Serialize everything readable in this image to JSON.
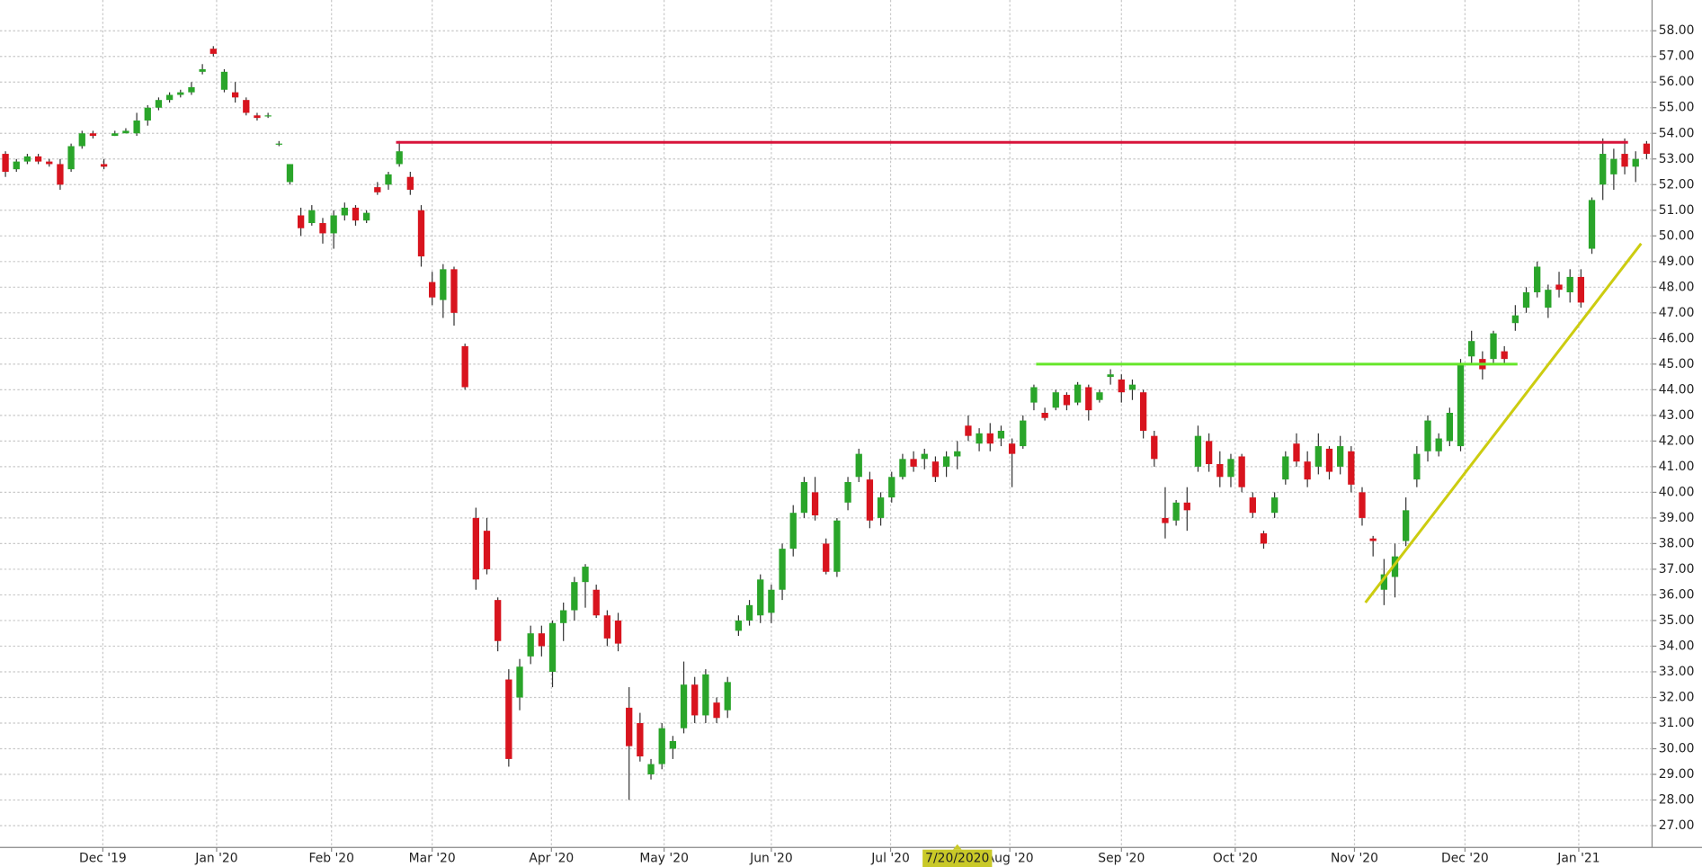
{
  "chart_data": {
    "type": "candlestick",
    "xlim": [
      -0.5,
      150.5
    ],
    "ylim": [
      26.15,
      59.2
    ],
    "grid": true,
    "up_color": "#2aa52a",
    "down_color": "#d8141e",
    "xticks": [
      {
        "value": 8.9,
        "label": "Dec '19"
      },
      {
        "value": 19.3,
        "label": "Jan '20"
      },
      {
        "value": 29.8,
        "label": "Feb '20"
      },
      {
        "value": 39,
        "label": "Mar '20"
      },
      {
        "value": 49.9,
        "label": "Apr '20"
      },
      {
        "value": 60.2,
        "label": "May '20"
      },
      {
        "value": 70,
        "label": "Jun '20"
      },
      {
        "value": 80.9,
        "label": "Jul '20"
      },
      {
        "value": 91.8,
        "label": "Aug '20"
      },
      {
        "value": 102,
        "label": "Sep '20"
      },
      {
        "value": 112.4,
        "label": "Oct '20"
      },
      {
        "value": 123.3,
        "label": "Nov '20"
      },
      {
        "value": 133.4,
        "label": "Dec '20"
      },
      {
        "value": 143.8,
        "label": "Jan '21"
      }
    ],
    "yticks": [
      {
        "value": 27,
        "label": "27.00"
      },
      {
        "value": 28,
        "label": "28.00"
      },
      {
        "value": 29,
        "label": "29.00"
      },
      {
        "value": 30,
        "label": "30.00"
      },
      {
        "value": 31,
        "label": "31.00"
      },
      {
        "value": 32,
        "label": "32.00"
      },
      {
        "value": 33,
        "label": "33.00"
      },
      {
        "value": 34,
        "label": "34.00"
      },
      {
        "value": 35,
        "label": "35.00"
      },
      {
        "value": 36,
        "label": "36.00"
      },
      {
        "value": 37,
        "label": "37.00"
      },
      {
        "value": 38,
        "label": "38.00"
      },
      {
        "value": 39,
        "label": "39.00"
      },
      {
        "value": 40,
        "label": "40.00"
      },
      {
        "value": 41,
        "label": "41.00"
      },
      {
        "value": 42,
        "label": "42.00"
      },
      {
        "value": 43,
        "label": "43.00"
      },
      {
        "value": 44,
        "label": "44.00"
      },
      {
        "value": 45,
        "label": "45.00"
      },
      {
        "value": 46,
        "label": "46.00"
      },
      {
        "value": 47,
        "label": "47.00"
      },
      {
        "value": 48,
        "label": "48.00"
      },
      {
        "value": 49,
        "label": "49.00"
      },
      {
        "value": 50,
        "label": "50.00"
      },
      {
        "value": 51,
        "label": "51.00"
      },
      {
        "value": 52,
        "label": "52.00"
      },
      {
        "value": 53,
        "label": "53.00"
      },
      {
        "value": 54,
        "label": "54.00"
      },
      {
        "value": 55,
        "label": "55.00"
      },
      {
        "value": 56,
        "label": "56.00"
      },
      {
        "value": 57,
        "label": "57.00"
      },
      {
        "value": 58,
        "label": "58.00"
      }
    ],
    "crosshair": {
      "value": 87,
      "label": "7/20/2020"
    },
    "candles": [
      [
        53.2,
        53.3,
        52.3,
        52.5
      ],
      [
        52.6,
        53.0,
        52.5,
        52.9
      ],
      [
        52.9,
        53.2,
        52.8,
        53.1
      ],
      [
        53.1,
        53.2,
        52.8,
        52.9
      ],
      [
        52.9,
        53.0,
        52.7,
        52.8
      ],
      [
        52.8,
        53.0,
        51.8,
        52.0
      ],
      [
        52.6,
        53.6,
        52.5,
        53.5
      ],
      [
        53.5,
        54.1,
        53.4,
        54.0
      ],
      [
        54.0,
        54.1,
        53.8,
        53.9
      ],
      [
        52.8,
        53.0,
        52.6,
        52.7
      ],
      [
        53.9,
        54.1,
        53.9,
        54.0
      ],
      [
        54.0,
        54.2,
        54.0,
        54.1
      ],
      [
        54.0,
        54.8,
        53.9,
        54.5
      ],
      [
        54.5,
        55.1,
        54.3,
        55.0
      ],
      [
        55.0,
        55.4,
        54.9,
        55.3
      ],
      [
        55.3,
        55.6,
        55.2,
        55.5
      ],
      [
        55.5,
        55.7,
        55.4,
        55.6
      ],
      [
        55.6,
        56.0,
        55.5,
        55.8
      ],
      [
        56.4,
        56.7,
        56.3,
        56.5
      ],
      [
        57.3,
        57.4,
        57.0,
        57.1
      ],
      [
        55.7,
        56.5,
        55.6,
        56.4
      ],
      [
        55.6,
        56.0,
        55.2,
        55.4
      ],
      [
        55.3,
        55.4,
        54.7,
        54.8
      ],
      [
        54.7,
        54.8,
        54.5,
        54.6
      ],
      [
        54.7,
        54.8,
        54.6,
        54.7
      ],
      [
        53.6,
        53.7,
        53.5,
        53.6
      ],
      [
        52.1,
        52.8,
        52.0,
        52.8
      ],
      [
        50.8,
        51.1,
        50.0,
        50.3
      ],
      [
        50.5,
        51.2,
        50.4,
        51.0
      ],
      [
        50.5,
        50.7,
        49.7,
        50.1
      ],
      [
        50.1,
        51.0,
        49.5,
        50.8
      ],
      [
        50.8,
        51.3,
        50.6,
        51.1
      ],
      [
        51.1,
        51.2,
        50.4,
        50.6
      ],
      [
        50.6,
        51.0,
        50.5,
        50.9
      ],
      [
        51.9,
        52.1,
        51.6,
        51.7
      ],
      [
        52.0,
        52.5,
        51.8,
        52.4
      ],
      [
        52.8,
        53.7,
        52.7,
        53.3
      ],
      [
        52.3,
        52.5,
        51.6,
        51.8
      ],
      [
        51.0,
        51.2,
        48.8,
        49.2
      ],
      [
        48.2,
        48.6,
        47.3,
        47.6
      ],
      [
        47.5,
        48.9,
        46.8,
        48.7
      ],
      [
        48.7,
        48.8,
        46.5,
        47.0
      ],
      [
        45.7,
        45.8,
        44.0,
        44.1
      ],
      [
        39.0,
        39.4,
        36.2,
        36.6
      ],
      [
        38.5,
        39.0,
        36.8,
        37.0
      ],
      [
        35.8,
        35.9,
        33.8,
        34.2
      ],
      [
        32.7,
        33.1,
        29.3,
        29.6
      ],
      [
        32.0,
        33.5,
        31.5,
        33.2
      ],
      [
        33.6,
        34.8,
        33.3,
        34.5
      ],
      [
        34.5,
        34.8,
        33.6,
        34.0
      ],
      [
        33.0,
        35.0,
        32.4,
        34.9
      ],
      [
        34.9,
        35.7,
        34.2,
        35.4
      ],
      [
        35.4,
        36.7,
        35.0,
        36.5
      ],
      [
        36.5,
        37.2,
        35.5,
        37.1
      ],
      [
        36.2,
        36.4,
        35.1,
        35.2
      ],
      [
        35.2,
        35.4,
        34.0,
        34.3
      ],
      [
        35.0,
        35.3,
        33.8,
        34.1
      ],
      [
        31.6,
        32.4,
        28.0,
        30.1
      ],
      [
        31.0,
        31.4,
        29.5,
        29.7
      ],
      [
        29.0,
        29.6,
        28.8,
        29.4
      ],
      [
        29.4,
        31.0,
        29.2,
        30.8
      ],
      [
        30.0,
        30.5,
        29.6,
        30.3
      ],
      [
        30.8,
        33.4,
        30.6,
        32.5
      ],
      [
        32.5,
        32.8,
        31.0,
        31.3
      ],
      [
        31.3,
        33.1,
        31.0,
        32.9
      ],
      [
        31.8,
        32.0,
        31.0,
        31.2
      ],
      [
        31.5,
        32.8,
        31.2,
        32.6
      ],
      [
        34.6,
        35.2,
        34.4,
        35.0
      ],
      [
        35.0,
        35.8,
        34.8,
        35.6
      ],
      [
        35.2,
        36.8,
        34.9,
        36.6
      ],
      [
        35.3,
        36.4,
        34.9,
        36.2
      ],
      [
        36.2,
        38.0,
        35.8,
        37.8
      ],
      [
        37.8,
        39.5,
        37.5,
        39.2
      ],
      [
        39.2,
        40.6,
        39.0,
        40.4
      ],
      [
        40.0,
        40.6,
        38.9,
        39.1
      ],
      [
        38.0,
        38.2,
        36.8,
        36.9
      ],
      [
        36.9,
        39.0,
        36.7,
        38.9
      ],
      [
        39.6,
        40.6,
        39.3,
        40.4
      ],
      [
        40.6,
        41.7,
        40.4,
        41.5
      ],
      [
        40.5,
        40.8,
        38.6,
        38.9
      ],
      [
        39.0,
        40.0,
        38.7,
        39.8
      ],
      [
        39.8,
        40.8,
        39.6,
        40.6
      ],
      [
        40.6,
        41.5,
        40.5,
        41.3
      ],
      [
        41.3,
        41.6,
        40.8,
        41.0
      ],
      [
        41.3,
        41.7,
        40.9,
        41.5
      ],
      [
        41.2,
        41.4,
        40.4,
        40.6
      ],
      [
        41.0,
        41.6,
        40.6,
        41.4
      ],
      [
        41.4,
        42.0,
        40.9,
        41.6
      ],
      [
        42.6,
        43.0,
        42.0,
        42.2
      ],
      [
        41.9,
        42.5,
        41.6,
        42.3
      ],
      [
        42.3,
        42.7,
        41.6,
        41.9
      ],
      [
        42.1,
        42.6,
        41.8,
        42.4
      ],
      [
        41.9,
        42.1,
        40.2,
        41.5
      ],
      [
        41.8,
        43.0,
        41.7,
        42.8
      ],
      [
        43.5,
        44.2,
        43.2,
        44.1
      ],
      [
        43.1,
        43.3,
        42.8,
        42.9
      ],
      [
        43.3,
        44.0,
        43.2,
        43.9
      ],
      [
        43.8,
        43.9,
        43.2,
        43.4
      ],
      [
        43.5,
        44.3,
        43.4,
        44.2
      ],
      [
        44.1,
        44.2,
        42.8,
        43.2
      ],
      [
        43.6,
        44.0,
        43.5,
        43.9
      ],
      [
        44.5,
        44.8,
        44.2,
        44.6
      ],
      [
        44.4,
        44.6,
        43.5,
        43.9
      ],
      [
        44.0,
        44.4,
        43.6,
        44.2
      ],
      [
        43.9,
        44.0,
        42.1,
        42.4
      ],
      [
        42.2,
        42.4,
        41.0,
        41.3
      ],
      [
        39.0,
        40.2,
        38.2,
        38.8
      ],
      [
        38.9,
        39.7,
        38.7,
        39.6
      ],
      [
        39.6,
        40.2,
        38.5,
        39.3
      ],
      [
        41.0,
        42.6,
        40.8,
        42.2
      ],
      [
        42.0,
        42.3,
        40.8,
        41.1
      ],
      [
        41.1,
        41.6,
        40.2,
        40.6
      ],
      [
        40.6,
        41.5,
        40.2,
        41.3
      ],
      [
        41.4,
        41.5,
        40.0,
        40.2
      ],
      [
        39.8,
        40.0,
        39.0,
        39.2
      ],
      [
        38.4,
        38.5,
        37.8,
        38.0
      ],
      [
        39.2,
        40.0,
        39.0,
        39.8
      ],
      [
        40.5,
        41.6,
        40.3,
        41.4
      ],
      [
        41.9,
        42.3,
        41.0,
        41.2
      ],
      [
        41.2,
        41.6,
        40.2,
        40.5
      ],
      [
        41.0,
        42.3,
        40.7,
        41.8
      ],
      [
        41.7,
        41.8,
        40.5,
        40.8
      ],
      [
        41.0,
        42.2,
        40.7,
        41.8
      ],
      [
        41.6,
        41.8,
        40.0,
        40.3
      ],
      [
        40.0,
        40.2,
        38.7,
        39.0
      ],
      [
        38.2,
        38.3,
        37.5,
        38.1
      ],
      [
        36.2,
        37.4,
        35.6,
        36.8
      ],
      [
        36.7,
        38.0,
        35.9,
        37.5
      ],
      [
        38.1,
        39.8,
        37.9,
        39.3
      ],
      [
        40.5,
        41.8,
        40.2,
        41.5
      ],
      [
        41.6,
        43.0,
        41.2,
        42.8
      ],
      [
        41.6,
        42.3,
        41.4,
        42.1
      ],
      [
        42.0,
        43.3,
        41.8,
        43.1
      ],
      [
        41.8,
        45.2,
        41.6,
        45.0
      ],
      [
        45.3,
        46.3,
        45.0,
        45.9
      ],
      [
        45.2,
        45.5,
        44.4,
        44.8
      ],
      [
        45.2,
        46.3,
        45.0,
        46.2
      ],
      [
        45.5,
        45.7,
        45.0,
        45.2
      ],
      [
        46.6,
        47.3,
        46.3,
        46.9
      ],
      [
        47.2,
        48.0,
        47.0,
        47.8
      ],
      [
        47.8,
        49.0,
        47.6,
        48.8
      ],
      [
        47.2,
        48.1,
        46.8,
        47.9
      ],
      [
        48.1,
        48.6,
        47.6,
        47.9
      ],
      [
        47.8,
        48.7,
        47.4,
        48.4
      ],
      [
        48.4,
        48.7,
        47.2,
        47.4
      ],
      [
        49.5,
        51.5,
        49.3,
        51.4
      ],
      [
        52.0,
        53.8,
        51.4,
        53.2
      ],
      [
        52.4,
        53.4,
        51.8,
        53.0
      ],
      [
        53.2,
        53.8,
        52.4,
        52.7
      ],
      [
        52.7,
        53.3,
        52.1,
        53.0
      ],
      [
        53.6,
        53.7,
        53.0,
        53.2
      ]
    ],
    "lines": [
      {
        "color": "#d8143a",
        "x": [
          35.7,
          148.3
        ],
        "y": [
          53.65,
          53.65
        ]
      },
      {
        "color": "#66e62a",
        "x": [
          94.2,
          138.2
        ],
        "y": [
          45,
          45
        ]
      },
      {
        "color": "#cccc10",
        "x": [
          124.3,
          149.5
        ],
        "y": [
          35.7,
          49.7
        ]
      }
    ]
  }
}
